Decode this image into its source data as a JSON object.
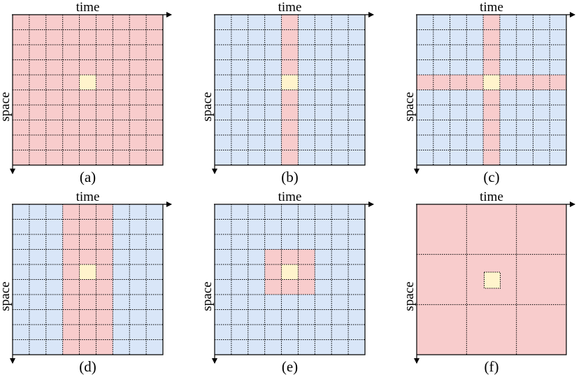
{
  "axis_labels": {
    "time": "time",
    "space": "space"
  },
  "colors": {
    "red": "#f8cccc",
    "blue": "#d9e6f8",
    "yellow": "#fff4cc",
    "grid_line": "#000000"
  },
  "panels": [
    {
      "id": "a",
      "caption": "(a)",
      "rows": 10,
      "cols": 9,
      "background": "red",
      "regions": [],
      "target": [
        4,
        4
      ]
    },
    {
      "id": "b",
      "caption": "(b)",
      "rows": 10,
      "cols": 9,
      "background": "blue",
      "regions": [
        {
          "row_start": 0,
          "row_end": 9,
          "col_start": 4,
          "col_end": 4
        }
      ],
      "target": [
        4,
        4
      ]
    },
    {
      "id": "c",
      "caption": "(c)",
      "rows": 10,
      "cols": 9,
      "background": "blue",
      "regions": [
        {
          "row_start": 0,
          "row_end": 9,
          "col_start": 4,
          "col_end": 4
        },
        {
          "row_start": 4,
          "row_end": 4,
          "col_start": 0,
          "col_end": 8
        }
      ],
      "target": [
        4,
        4
      ]
    },
    {
      "id": "d",
      "caption": "(d)",
      "rows": 10,
      "cols": 9,
      "background": "blue",
      "regions": [
        {
          "row_start": 0,
          "row_end": 9,
          "col_start": 3,
          "col_end": 5
        }
      ],
      "target": [
        4,
        4
      ]
    },
    {
      "id": "e",
      "caption": "(e)",
      "rows": 10,
      "cols": 9,
      "background": "blue",
      "regions": [
        {
          "row_start": 3,
          "row_end": 5,
          "col_start": 3,
          "col_end": 5
        }
      ],
      "target": [
        4,
        4
      ]
    },
    {
      "id": "f",
      "caption": "(f)",
      "rows": 3,
      "cols": 3,
      "background": "red",
      "regions": [],
      "target": [
        1,
        1
      ],
      "coarse": true
    }
  ]
}
